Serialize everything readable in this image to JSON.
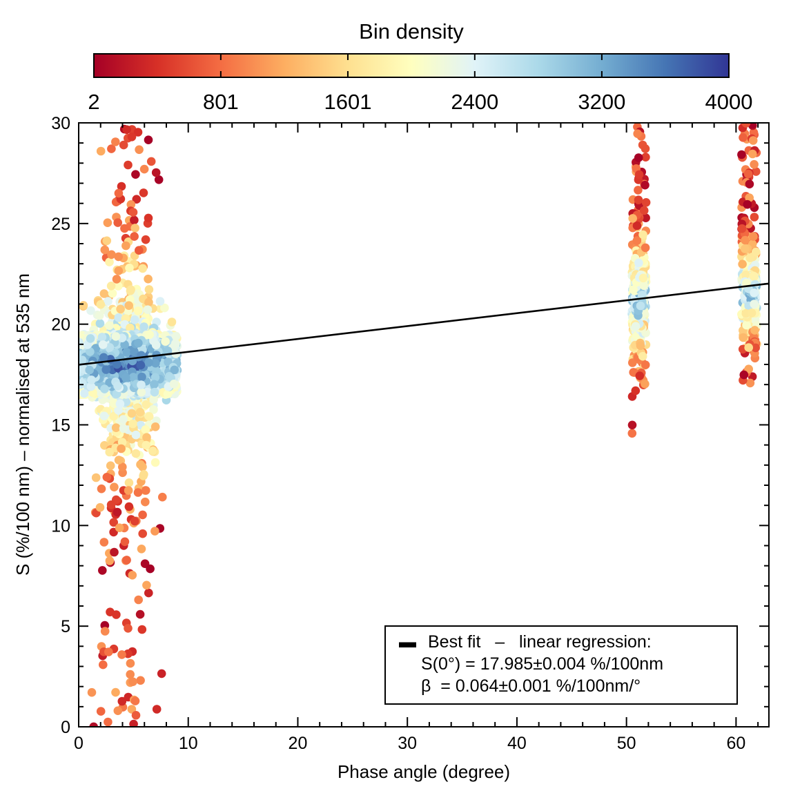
{
  "chart_data": {
    "type": "scatter",
    "title": "",
    "xlabel": "Phase angle (degree)",
    "ylabel": "S (%/100 nm) – normalised at 535 nm",
    "xlim": [
      0,
      63
    ],
    "ylim": [
      0,
      30
    ],
    "x_ticks": [
      0,
      10,
      20,
      30,
      40,
      50,
      60
    ],
    "y_ticks": [
      0,
      5,
      10,
      15,
      20,
      25,
      30
    ],
    "grid": false,
    "colorbar": {
      "title": "Bin density",
      "ticks": [
        2,
        801,
        1601,
        2400,
        3200,
        4000
      ],
      "range": [
        2,
        4000
      ],
      "colormap": [
        "#a50026",
        "#d73027",
        "#f46d43",
        "#fdae61",
        "#fee090",
        "#ffffbf",
        "#e0f3f8",
        "#abd9e9",
        "#74add1",
        "#4575b4",
        "#313695"
      ]
    },
    "clusters": [
      {
        "x_range": [
          0,
          9
        ],
        "core": [
          0,
          9,
          16.5,
          19.5
        ],
        "y_range": [
          0,
          30
        ],
        "density": "high"
      },
      {
        "x_range": [
          50.5,
          51.8
        ],
        "core": [
          50.6,
          51.6,
          19.8,
          22.5
        ],
        "y_range": [
          12.3,
          30
        ],
        "density": "medium"
      },
      {
        "x_range": [
          60.5,
          61.9
        ],
        "core": [
          60.8,
          61.8,
          20.5,
          22.5
        ],
        "y_range": [
          17,
          30
        ],
        "density": "medium"
      }
    ],
    "fit": {
      "name": "linear regression",
      "x": [
        0,
        63
      ],
      "y": [
        17.985,
        22.017
      ]
    },
    "legend": {
      "position": "bottom-right",
      "line1_symbol": "▬",
      "line1_text": "Best fit   –   linear regression:",
      "line2": "S(0°) = 17.985±0.004 %/100nm",
      "line3": "β  = 0.064±0.001 %/100nm/°"
    }
  }
}
